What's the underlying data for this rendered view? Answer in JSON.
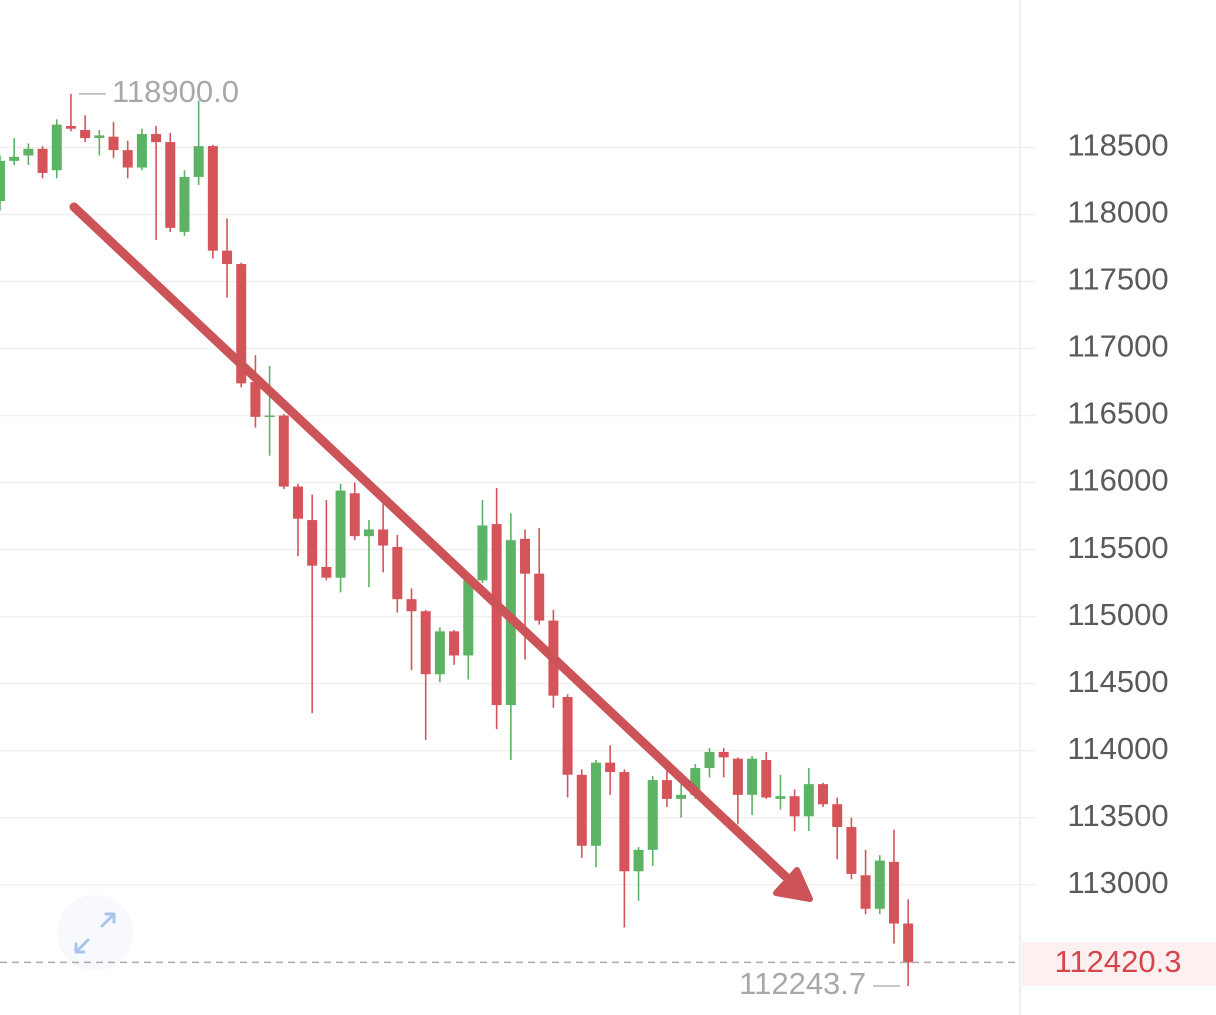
{
  "chart_data": {
    "type": "candlestick",
    "open": [
      118100,
      118400,
      118440,
      118490,
      118330,
      118660,
      118630,
      118570,
      118580,
      118480,
      118350,
      118600,
      118540,
      117870,
      118280,
      118510,
      117730,
      117630,
      116750,
      116490,
      116500,
      115970,
      115720,
      115370,
      115290,
      115920,
      115600,
      115650,
      115520,
      115130,
      115040,
      114570,
      114890,
      114710,
      115270,
      115690,
      114340,
      115580,
      115320,
      114970,
      114400,
      113820,
      113290,
      113910,
      113840,
      113100,
      113260,
      113780,
      113640,
      113670,
      113870,
      113990,
      113940,
      113670,
      113930,
      113640,
      113660,
      113510,
      113750,
      113600,
      113430,
      113070,
      112820,
      113170,
      112710
    ],
    "high": [
      118440,
      118570,
      118530,
      118510,
      118710,
      118900,
      118740,
      118630,
      118690,
      118550,
      118640,
      118660,
      118610,
      118330,
      118850,
      118520,
      117970,
      117640,
      116950,
      116870,
      116510,
      115990,
      115910,
      115870,
      115990,
      116000,
      115720,
      115870,
      115610,
      115210,
      115050,
      114920,
      114900,
      115290,
      115870,
      115960,
      115770,
      115650,
      115660,
      115050,
      114420,
      113860,
      113930,
      114040,
      113860,
      113280,
      113810,
      113860,
      113750,
      113900,
      114020,
      114020,
      113950,
      113960,
      113990,
      113820,
      113710,
      113870,
      113760,
      113650,
      113500,
      113260,
      113220,
      113410,
      112890
    ],
    "low": [
      118030,
      118370,
      118370,
      118270,
      118270,
      118620,
      118540,
      118440,
      118420,
      118270,
      118330,
      117810,
      117870,
      117840,
      118220,
      117670,
      117380,
      116710,
      116410,
      116200,
      115950,
      115450,
      114280,
      115270,
      115180,
      115570,
      115220,
      115330,
      115030,
      114600,
      114080,
      114510,
      114640,
      114530,
      115250,
      114160,
      113930,
      114680,
      114940,
      114320,
      113650,
      113200,
      113130,
      113670,
      112680,
      112880,
      113140,
      113580,
      113500,
      113640,
      113800,
      113800,
      113450,
      113520,
      113640,
      113560,
      113400,
      113400,
      113580,
      113190,
      113040,
      112780,
      112780,
      112560,
      112243.7
    ],
    "close": [
      118400,
      118430,
      118490,
      118310,
      118670,
      118640,
      118570,
      118590,
      118480,
      118350,
      118600,
      118540,
      117900,
      118280,
      118510,
      117730,
      117630,
      116740,
      116490,
      116500,
      115970,
      115730,
      115380,
      115290,
      115940,
      115600,
      115650,
      115530,
      115130,
      115040,
      114570,
      114890,
      114710,
      115270,
      115680,
      114340,
      115570,
      115320,
      114970,
      114410,
      113820,
      113290,
      113910,
      113840,
      113100,
      113260,
      113780,
      113640,
      113670,
      113870,
      113990,
      113950,
      113670,
      113940,
      113650,
      113660,
      113510,
      113750,
      113600,
      113430,
      113080,
      112820,
      113180,
      112710,
      112420.3
    ],
    "up_color": "#5cb363",
    "down_color": "#d4545a",
    "ylim": [
      112050,
      119600
    ],
    "yticks": [
      113000,
      113500,
      114000,
      114500,
      115000,
      115500,
      116000,
      116500,
      117000,
      117500,
      118000,
      118500
    ],
    "grid": true,
    "max_label": {
      "value": 118900,
      "label": "118900.0"
    },
    "min_label": 112243.7,
    "last_price": 112420.3
  }
}
